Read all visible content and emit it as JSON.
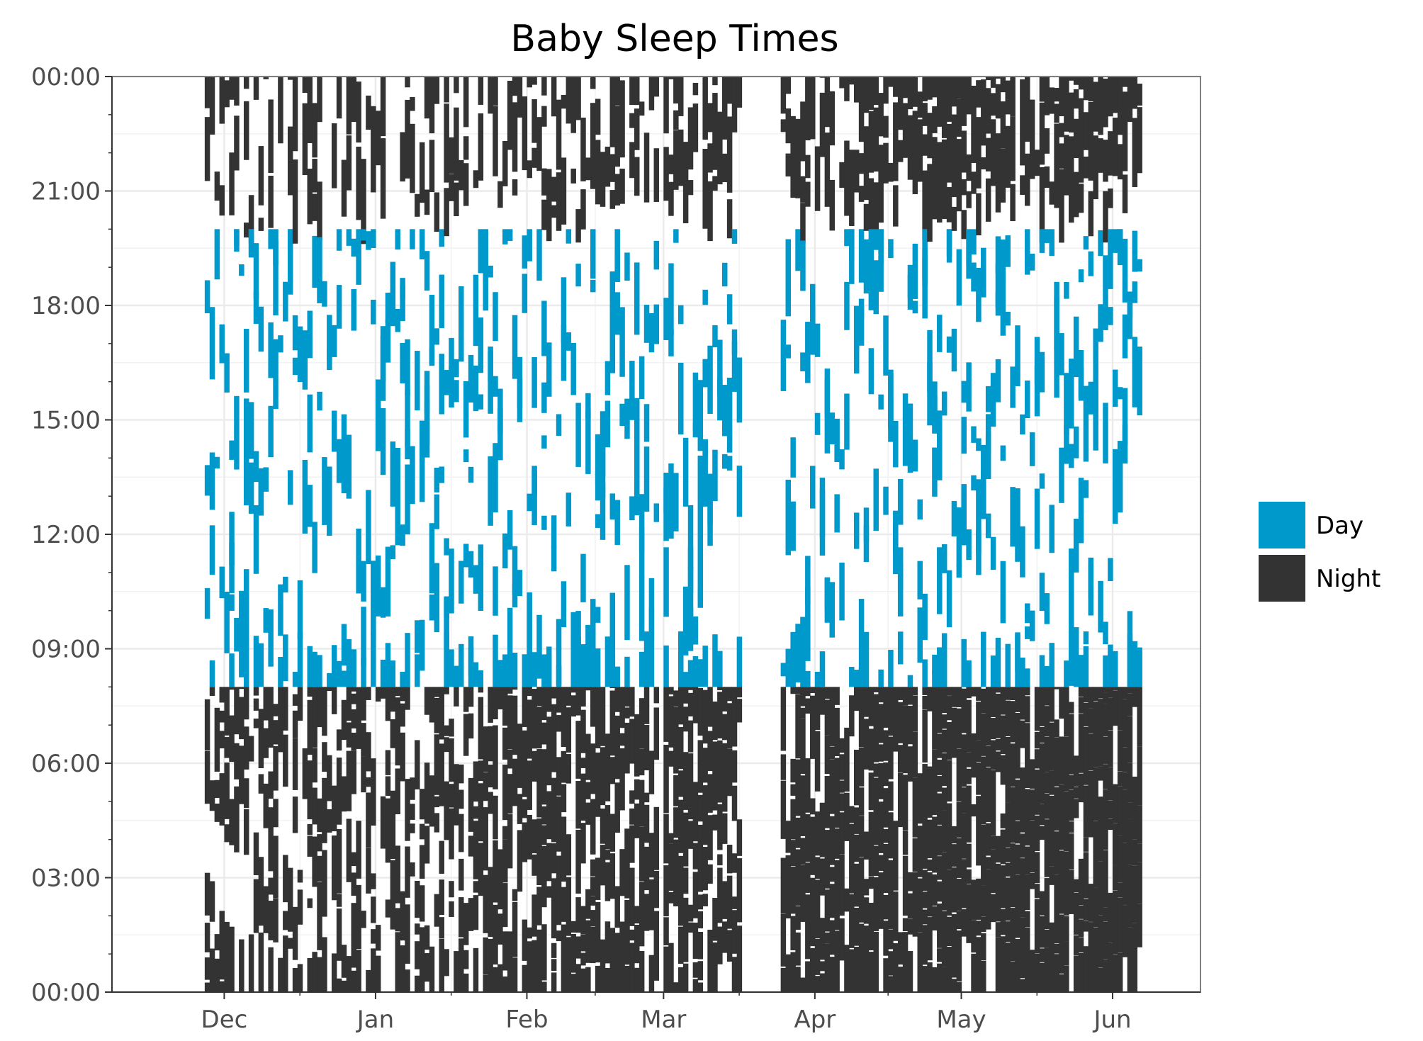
{
  "chart_data": {
    "type": "heatmap",
    "title": "Baby Sleep Times",
    "xlabel": "",
    "ylabel": "",
    "x_axis": {
      "type": "date",
      "range": [
        "2022-11-08",
        "2023-06-19"
      ],
      "ticks": [
        {
          "date": "2022-12-01",
          "label": "Dec"
        },
        {
          "date": "2023-01-01",
          "label": "Jan"
        },
        {
          "date": "2023-02-01",
          "label": "Feb"
        },
        {
          "date": "2023-03-01",
          "label": "Mar"
        },
        {
          "date": "2023-04-01",
          "label": "Apr"
        },
        {
          "date": "2023-05-01",
          "label": "May"
        },
        {
          "date": "2023-06-01",
          "label": "Jun"
        }
      ]
    },
    "y_axis": {
      "unit": "hour of day",
      "range": [
        0,
        24
      ],
      "ticks": [
        {
          "value": 0,
          "label": "00:00"
        },
        {
          "value": 3,
          "label": "03:00"
        },
        {
          "value": 6,
          "label": "06:00"
        },
        {
          "value": 9,
          "label": "09:00"
        },
        {
          "value": 12,
          "label": "12:00"
        },
        {
          "value": 15,
          "label": "15:00"
        },
        {
          "value": 18,
          "label": "18:00"
        },
        {
          "value": 21,
          "label": "21:00"
        },
        {
          "value": 24,
          "label": "00:00"
        }
      ]
    },
    "data_range": {
      "start": "2022-11-27",
      "end": "2023-06-06"
    },
    "gaps": [
      {
        "start": "2023-02-28",
        "end": "2023-02-28"
      },
      {
        "start": "2023-03-17",
        "end": "2023-03-24"
      }
    ],
    "night_window": {
      "morning_end": 8,
      "evening_start": 20
    },
    "series": [
      {
        "name": "Day",
        "color": "#0099cc"
      },
      {
        "name": "Night",
        "color": "#333333"
      }
    ],
    "grid": true,
    "legend_position": "right"
  }
}
